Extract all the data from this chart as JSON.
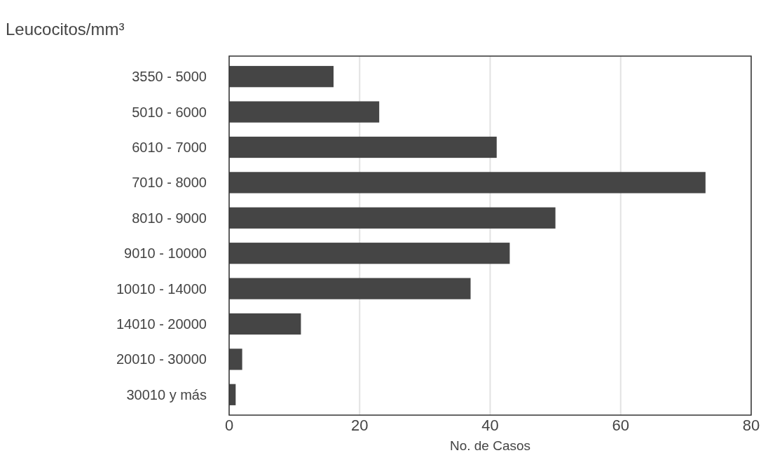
{
  "chart_data": {
    "type": "bar",
    "orientation": "horizontal",
    "ylabel": "Leucocitos/mm³",
    "xlabel": "No. de Casos",
    "categories": [
      "3550 - 5000",
      "5010 - 6000",
      "6010 - 7000",
      "7010 - 8000",
      "8010 - 9000",
      "9010 - 10000",
      "10010 - 14000",
      "14010 - 20000",
      "20010 - 30000",
      "30010 y más"
    ],
    "values": [
      16,
      23,
      41,
      73,
      50,
      43,
      37,
      11,
      2,
      1
    ],
    "color": "#454545",
    "xlim": [
      0,
      80
    ],
    "xticks": [
      0,
      20,
      40,
      60,
      80
    ],
    "grid": "x"
  }
}
